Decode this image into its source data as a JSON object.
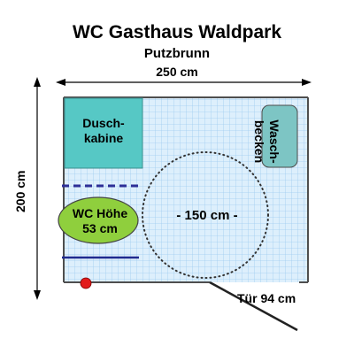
{
  "header": {
    "title": "WC Gasthaus Waldpark",
    "subtitle": "Putzbrunn"
  },
  "dimensions": {
    "width_label": "250 cm",
    "height_label": "200 cm",
    "door_label": "Tür 94 cm"
  },
  "room": {
    "shower_label": "Dusch-\nkabine",
    "basin_label": "Wasch-\nbecken",
    "toilet_label": "WC Höhe\n53 cm",
    "circle_label": "- 150 cm -"
  },
  "colors": {
    "floor": "#ddeffc",
    "tile_grid": "#9fcdf0",
    "wall": "#4e4e4e",
    "shower": "#56c8c5",
    "basin": "#7dc5c4",
    "toilet": "#8fcf3d",
    "rail_dashed": "#2d2f97",
    "rail_solid": "#202a8f",
    "marker": "#e21b1b",
    "door": "#222222"
  }
}
